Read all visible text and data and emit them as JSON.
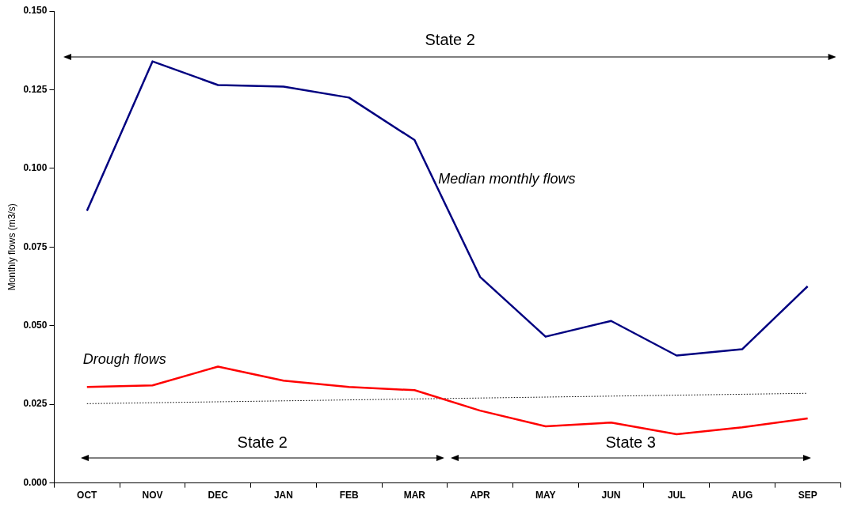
{
  "chart_data": {
    "type": "line",
    "ylabel": "Monthly flows (m3/s)",
    "categories": [
      "OCT",
      "NOV",
      "DEC",
      "JAN",
      "FEB",
      "MAR",
      "APR",
      "MAY",
      "JUN",
      "JUL",
      "AUG",
      "SEP"
    ],
    "series": [
      {
        "name": "Median monthly flows",
        "color": "#000080",
        "values": [
          0.0865,
          0.134,
          0.1265,
          0.126,
          0.1225,
          0.109,
          0.0655,
          0.0465,
          0.0515,
          0.0405,
          0.0425,
          0.0625
        ]
      },
      {
        "name": "Drough flows",
        "color": "#ff0000",
        "values": [
          0.0305,
          0.031,
          0.037,
          0.0325,
          0.0305,
          0.0295,
          0.023,
          0.018,
          0.0192,
          0.0155,
          0.0177,
          0.0205
        ]
      },
      {
        "color": "#000000",
        "line_style": "dotted",
        "values": [
          0.0252,
          0.0255,
          0.0258,
          0.0261,
          0.0264,
          0.0267,
          0.027,
          0.0273,
          0.0276,
          0.0279,
          0.0282,
          0.0285
        ]
      }
    ],
    "ylim": [
      0,
      0.15
    ],
    "yticks": [
      {
        "value": 0,
        "label": "0.000"
      },
      {
        "value": 0.025,
        "label": "0.025"
      },
      {
        "value": 0.05,
        "label": "0.050"
      },
      {
        "value": 0.075,
        "label": "0.075"
      },
      {
        "value": 0.1,
        "label": "0.100"
      },
      {
        "value": 0.125,
        "label": "0.125"
      },
      {
        "value": 0.15,
        "label": "0.150"
      }
    ],
    "annotations": [
      "State 2",
      "State 2",
      "State 3"
    ],
    "grid": false,
    "legend": false,
    "marker": "none",
    "line_style": "solid"
  }
}
